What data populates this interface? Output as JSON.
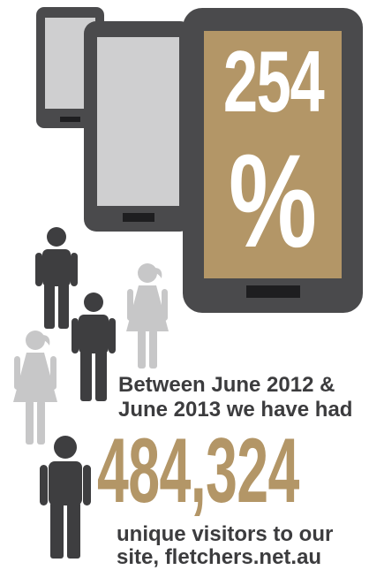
{
  "colors": {
    "phone_body": "#4a4a4c",
    "phone_screen": "#cfcfd0",
    "highlight_screen": "#b39667",
    "male_figure": "#3e3e40",
    "female_figure": "#c7c7c8",
    "accent_gold": "#b39667",
    "text_dark": "#3c3c3e"
  },
  "stat": {
    "number": "254",
    "symbol": "%"
  },
  "intro": {
    "line1": "Between June 2012 &",
    "line2": "June 2013 we have had"
  },
  "visitors": {
    "count": "484,324"
  },
  "outro": {
    "line1": "unique visitors to our",
    "line2": "site,  fletchers.net.au"
  },
  "icons": [
    "smartphone-icon",
    "male-person-icon",
    "female-person-icon"
  ]
}
